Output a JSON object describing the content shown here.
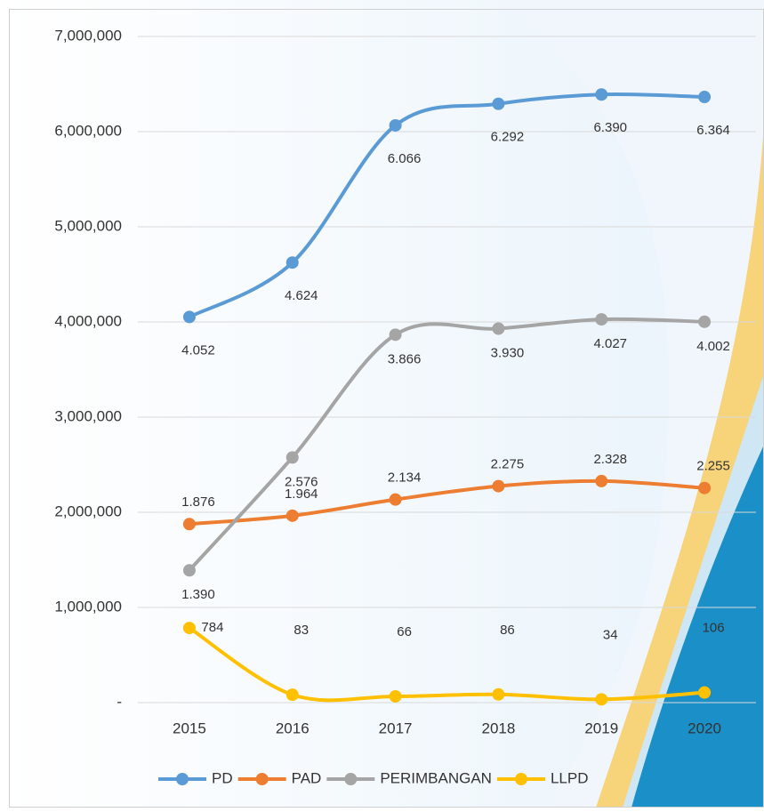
{
  "chart_data": {
    "type": "line",
    "categories": [
      "2015",
      "2016",
      "2017",
      "2018",
      "2019",
      "2020"
    ],
    "series": [
      {
        "name": "PD",
        "color": "#5b9bd5",
        "values": [
          4052000,
          4624000,
          6066000,
          6292000,
          6390000,
          6364000
        ],
        "value_labels": [
          "4.052",
          "4.624",
          "6.066",
          "6.292",
          "6.390",
          "6.364"
        ]
      },
      {
        "name": "PAD",
        "color": "#ed7d31",
        "values": [
          1876000,
          1964000,
          2134000,
          2275000,
          2328000,
          2255000
        ],
        "value_labels": [
          "1.876",
          "1.964",
          "2.134",
          "2.275",
          "2.328",
          "2.255"
        ]
      },
      {
        "name": "PERIMBANGAN",
        "color": "#a5a5a5",
        "values": [
          1390000,
          2576000,
          3866000,
          3930000,
          4027000,
          4002000
        ],
        "value_labels": [
          "1.390",
          "2.576",
          "3.866",
          "3.930",
          "4.027",
          "4.002"
        ]
      },
      {
        "name": "LLPD",
        "color": "#ffc000",
        "values": [
          784000,
          83000,
          66000,
          86000,
          34000,
          106000
        ],
        "value_labels": [
          "784",
          "83",
          "66",
          "86",
          "34",
          "106"
        ]
      }
    ],
    "ylim": [
      0,
      7000000
    ],
    "yticks": [
      {
        "value": 0,
        "label": "-"
      },
      {
        "value": 1000000,
        "label": "1,000,000"
      },
      {
        "value": 2000000,
        "label": "2,000,000"
      },
      {
        "value": 3000000,
        "label": "3,000,000"
      },
      {
        "value": 4000000,
        "label": "4,000,000"
      },
      {
        "value": 5000000,
        "label": "5,000,000"
      },
      {
        "value": 6000000,
        "label": "6,000,000"
      },
      {
        "value": 7000000,
        "label": "7,000,000"
      }
    ],
    "grid": true,
    "legend": "bottom"
  }
}
